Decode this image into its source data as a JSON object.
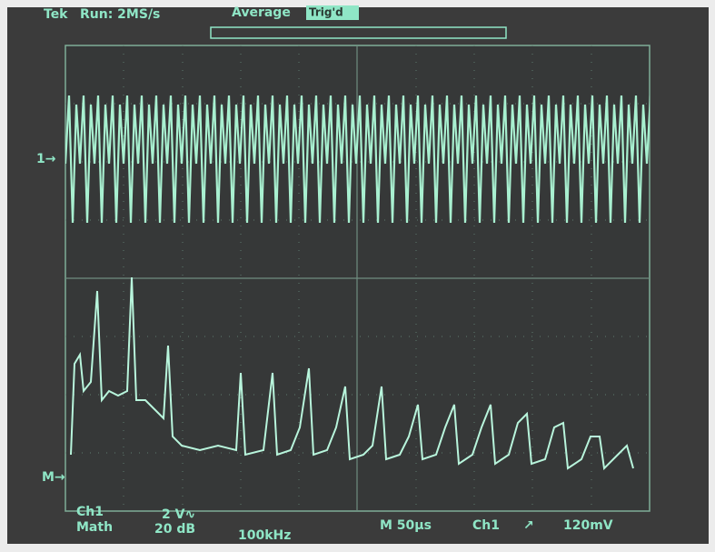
{
  "header": {
    "brand": "Tek",
    "run": "Run: 2MS/s",
    "mode": "Average",
    "trigger_state": "Trig'd"
  },
  "markers": {
    "ch1": "1→",
    "math": "M→"
  },
  "footer": {
    "channel": "Ch1",
    "source": "Math",
    "ch_scale": "2 V∿",
    "math_scale": "20 dB",
    "span": "100kHz",
    "timebase": "M 50µs",
    "trig_source": "Ch1",
    "trig_slope": "↗",
    "trig_level": "120mV"
  }
}
